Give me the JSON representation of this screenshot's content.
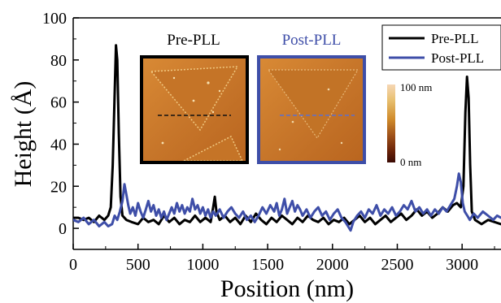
{
  "chart_data": {
    "type": "line",
    "xlabel": "Position (nm)",
    "ylabel": "Height (Å)",
    "xlim": [
      0,
      3300
    ],
    "ylim": [
      -10,
      100
    ],
    "xticks": [
      0,
      500,
      1000,
      1500,
      2000,
      2500,
      3000
    ],
    "yticks": [
      0,
      20,
      40,
      60,
      80,
      100
    ],
    "grid": false,
    "legend_position": "top-right",
    "series": [
      {
        "name": "Pre-PLL",
        "color": "#000000",
        "points": [
          [
            0,
            5
          ],
          [
            40,
            5
          ],
          [
            80,
            4
          ],
          [
            120,
            5
          ],
          [
            160,
            3
          ],
          [
            200,
            6
          ],
          [
            240,
            4
          ],
          [
            270,
            6
          ],
          [
            290,
            10
          ],
          [
            305,
            30
          ],
          [
            318,
            60
          ],
          [
            330,
            87
          ],
          [
            340,
            80
          ],
          [
            352,
            45
          ],
          [
            365,
            15
          ],
          [
            380,
            6
          ],
          [
            410,
            4
          ],
          [
            450,
            3
          ],
          [
            500,
            2
          ],
          [
            540,
            5
          ],
          [
            580,
            3
          ],
          [
            620,
            4
          ],
          [
            660,
            2
          ],
          [
            700,
            6
          ],
          [
            740,
            3
          ],
          [
            780,
            5
          ],
          [
            820,
            2
          ],
          [
            860,
            4
          ],
          [
            900,
            3
          ],
          [
            940,
            6
          ],
          [
            980,
            3
          ],
          [
            1020,
            5
          ],
          [
            1060,
            3
          ],
          [
            1080,
            10
          ],
          [
            1092,
            15
          ],
          [
            1105,
            8
          ],
          [
            1130,
            4
          ],
          [
            1170,
            6
          ],
          [
            1210,
            3
          ],
          [
            1250,
            5
          ],
          [
            1290,
            2
          ],
          [
            1330,
            6
          ],
          [
            1370,
            3
          ],
          [
            1410,
            7
          ],
          [
            1450,
            4
          ],
          [
            1490,
            2
          ],
          [
            1530,
            5
          ],
          [
            1570,
            3
          ],
          [
            1610,
            6
          ],
          [
            1650,
            4
          ],
          [
            1690,
            2
          ],
          [
            1730,
            5
          ],
          [
            1770,
            3
          ],
          [
            1810,
            6
          ],
          [
            1850,
            4
          ],
          [
            1890,
            3
          ],
          [
            1930,
            5
          ],
          [
            1970,
            2
          ],
          [
            2010,
            4
          ],
          [
            2050,
            3
          ],
          [
            2090,
            5
          ],
          [
            2130,
            2
          ],
          [
            2170,
            4
          ],
          [
            2210,
            6
          ],
          [
            2250,
            3
          ],
          [
            2290,
            5
          ],
          [
            2330,
            2
          ],
          [
            2370,
            4
          ],
          [
            2410,
            6
          ],
          [
            2450,
            3
          ],
          [
            2490,
            5
          ],
          [
            2530,
            7
          ],
          [
            2570,
            4
          ],
          [
            2610,
            6
          ],
          [
            2650,
            9
          ],
          [
            2690,
            6
          ],
          [
            2730,
            8
          ],
          [
            2770,
            5
          ],
          [
            2810,
            7
          ],
          [
            2850,
            10
          ],
          [
            2890,
            8
          ],
          [
            2930,
            11
          ],
          [
            2960,
            12
          ],
          [
            2990,
            10
          ],
          [
            3010,
            20
          ],
          [
            3025,
            55
          ],
          [
            3038,
            72
          ],
          [
            3050,
            62
          ],
          [
            3062,
            30
          ],
          [
            3075,
            8
          ],
          [
            3100,
            4
          ],
          [
            3150,
            2
          ],
          [
            3200,
            4
          ],
          [
            3250,
            3
          ],
          [
            3300,
            2
          ]
        ]
      },
      {
        "name": "Post-PLL",
        "color": "#3e4ea8",
        "points": [
          [
            0,
            4
          ],
          [
            40,
            3
          ],
          [
            80,
            5
          ],
          [
            120,
            2
          ],
          [
            160,
            4
          ],
          [
            200,
            1
          ],
          [
            240,
            3
          ],
          [
            270,
            1
          ],
          [
            300,
            2
          ],
          [
            320,
            6
          ],
          [
            340,
            4
          ],
          [
            360,
            8
          ],
          [
            380,
            13
          ],
          [
            395,
            21
          ],
          [
            410,
            16
          ],
          [
            425,
            11
          ],
          [
            440,
            7
          ],
          [
            460,
            10
          ],
          [
            480,
            6
          ],
          [
            500,
            12
          ],
          [
            520,
            8
          ],
          [
            540,
            5
          ],
          [
            560,
            9
          ],
          [
            580,
            13
          ],
          [
            600,
            8
          ],
          [
            620,
            11
          ],
          [
            640,
            6
          ],
          [
            660,
            9
          ],
          [
            680,
            5
          ],
          [
            700,
            8
          ],
          [
            720,
            4
          ],
          [
            740,
            7
          ],
          [
            760,
            10
          ],
          [
            780,
            7
          ],
          [
            800,
            12
          ],
          [
            820,
            8
          ],
          [
            840,
            11
          ],
          [
            860,
            7
          ],
          [
            880,
            10
          ],
          [
            900,
            8
          ],
          [
            920,
            14
          ],
          [
            940,
            9
          ],
          [
            960,
            11
          ],
          [
            980,
            7
          ],
          [
            1000,
            10
          ],
          [
            1020,
            6
          ],
          [
            1040,
            9
          ],
          [
            1060,
            5
          ],
          [
            1080,
            8
          ],
          [
            1100,
            6
          ],
          [
            1130,
            9
          ],
          [
            1160,
            5
          ],
          [
            1190,
            8
          ],
          [
            1220,
            10
          ],
          [
            1250,
            7
          ],
          [
            1280,
            5
          ],
          [
            1310,
            8
          ],
          [
            1340,
            4
          ],
          [
            1370,
            6
          ],
          [
            1400,
            3
          ],
          [
            1430,
            6
          ],
          [
            1460,
            10
          ],
          [
            1490,
            7
          ],
          [
            1520,
            11
          ],
          [
            1550,
            8
          ],
          [
            1570,
            12
          ],
          [
            1590,
            6
          ],
          [
            1610,
            9
          ],
          [
            1630,
            14
          ],
          [
            1650,
            7
          ],
          [
            1670,
            10
          ],
          [
            1690,
            13
          ],
          [
            1710,
            8
          ],
          [
            1730,
            11
          ],
          [
            1750,
            9
          ],
          [
            1770,
            6
          ],
          [
            1800,
            9
          ],
          [
            1830,
            5
          ],
          [
            1860,
            8
          ],
          [
            1890,
            10
          ],
          [
            1920,
            6
          ],
          [
            1950,
            8
          ],
          [
            1980,
            4
          ],
          [
            2010,
            7
          ],
          [
            2040,
            9
          ],
          [
            2070,
            5
          ],
          [
            2100,
            3
          ],
          [
            2120,
            1
          ],
          [
            2140,
            -1
          ],
          [
            2160,
            3
          ],
          [
            2190,
            6
          ],
          [
            2220,
            8
          ],
          [
            2250,
            5
          ],
          [
            2280,
            9
          ],
          [
            2310,
            7
          ],
          [
            2340,
            11
          ],
          [
            2370,
            6
          ],
          [
            2400,
            9
          ],
          [
            2430,
            7
          ],
          [
            2460,
            10
          ],
          [
            2490,
            6
          ],
          [
            2520,
            8
          ],
          [
            2550,
            11
          ],
          [
            2580,
            9
          ],
          [
            2610,
            13
          ],
          [
            2640,
            8
          ],
          [
            2670,
            10
          ],
          [
            2700,
            7
          ],
          [
            2730,
            9
          ],
          [
            2760,
            6
          ],
          [
            2790,
            9
          ],
          [
            2820,
            7
          ],
          [
            2850,
            10
          ],
          [
            2880,
            8
          ],
          [
            2910,
            11
          ],
          [
            2940,
            14
          ],
          [
            2960,
            20
          ],
          [
            2975,
            26
          ],
          [
            2990,
            22
          ],
          [
            3005,
            12
          ],
          [
            3020,
            8
          ],
          [
            3040,
            6
          ],
          [
            3060,
            4
          ],
          [
            3090,
            7
          ],
          [
            3120,
            5
          ],
          [
            3160,
            8
          ],
          [
            3200,
            6
          ],
          [
            3240,
            4
          ],
          [
            3270,
            6
          ],
          [
            3300,
            5
          ]
        ]
      }
    ]
  },
  "insets": [
    {
      "label": "Pre-PLL",
      "label_color": "#000000",
      "border_color": "#000000",
      "line_color": "#111111"
    },
    {
      "label": "Post-PLL",
      "label_color": "#3e4ea8",
      "border_color": "#3e4ea8",
      "line_color": "#5a6fd0"
    }
  ],
  "colorbar": {
    "max_label": "100 nm",
    "min_label": "0 nm",
    "colors": [
      "#f6d7b5",
      "#e8c070",
      "#cf8a2a",
      "#a0521a",
      "#6b2308",
      "#3a0a04"
    ]
  }
}
